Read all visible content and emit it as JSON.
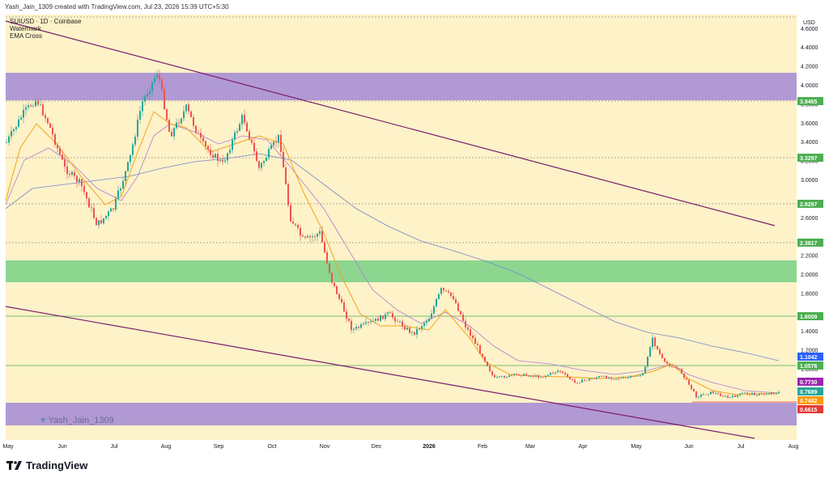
{
  "header": {
    "text": "Yash_Jain_1309 created with TradingView.com, Jul 23, 2026 15:39 UTC+5:30"
  },
  "legend": {
    "symbol": "SUIUSD · 1D · Coinbase",
    "line2": "Watermark",
    "line3": "EMA Cross"
  },
  "watermark": {
    "text": "Yash_Jain_1309",
    "icon": "heart-icon"
  },
  "footer": {
    "brand": "TradingView",
    "logo": "tradingview-logo"
  },
  "axis": {
    "currency": "USD",
    "y_ticks": [
      "4.6000",
      "4.4000",
      "4.2000",
      "4.0000",
      "3.8000",
      "3.6000",
      "3.4000",
      "3.2000",
      "3.0000",
      "2.6000",
      "2.2000",
      "2.0000",
      "1.8000",
      "1.4000",
      "1.2000",
      "1.0000"
    ],
    "x_ticks": [
      "May",
      "Jun",
      "Jul",
      "Aug",
      "Sep",
      "Oct",
      "Nov",
      "Dec",
      "2026",
      "Feb",
      "Mar",
      "Apr",
      "May",
      "Jun",
      "Jul",
      "Aug"
    ]
  },
  "price_labels": [
    {
      "text": "3.9465",
      "color": "#4caf50"
    },
    {
      "text": "3.3297",
      "color": "#4caf50"
    },
    {
      "text": "2.8297",
      "color": "#4caf50"
    },
    {
      "text": "2.3817",
      "color": "#4caf50"
    },
    {
      "text": "1.6009",
      "color": "#4caf50"
    },
    {
      "text": "1.1042",
      "color": "#2962ff"
    },
    {
      "text": "1.0576",
      "color": "#4caf50"
    },
    {
      "text": "0.7730",
      "color": "#9c27b0"
    },
    {
      "text": "0.7689",
      "color": "#26a69a"
    },
    {
      "text": "0.7482",
      "color": "#ff9800"
    },
    {
      "text": "0.6615",
      "color": "#e53935"
    }
  ],
  "colors": {
    "background": "#fdf2c8",
    "purple_zone": "#a98fd4",
    "green_zone": "#7fd38a",
    "trendline": "#7a1d6e",
    "ema_fast": "#f2a51a",
    "ema_mid": "#b57ad6",
    "ema_slow": "#7986cb",
    "up": "#26a69a",
    "down": "#ef5350"
  }
}
